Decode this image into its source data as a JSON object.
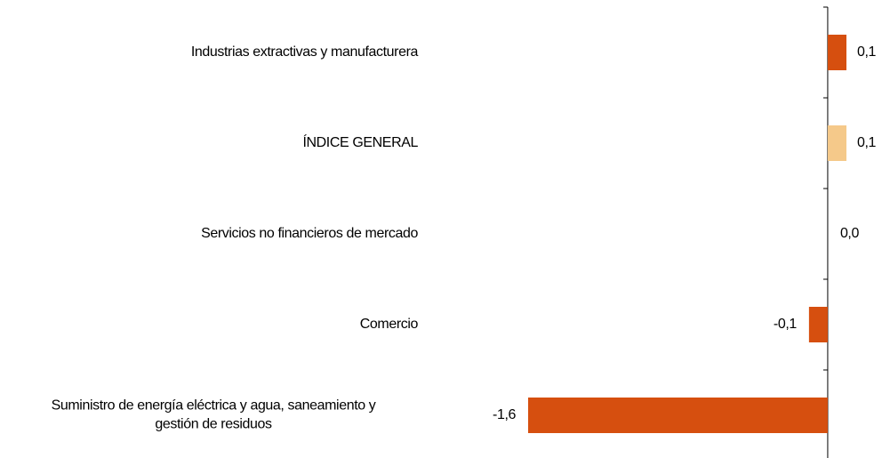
{
  "chart_data": {
    "type": "barh",
    "categories": [
      [
        "Industrias extractivas y manufacturera"
      ],
      [
        "ÍNDICE GENERAL"
      ],
      [
        "Servicios no financieros de mercado"
      ],
      [
        "Comercio"
      ],
      [
        "Suministro de energía eléctrica y agua, saneamiento y",
        "gestión de residuos"
      ]
    ],
    "values": [
      0.1,
      0.1,
      0.0,
      -0.1,
      -1.6
    ],
    "value_labels": [
      "0,1",
      "0,1",
      "0,0",
      "-0,1",
      "-1,6"
    ],
    "colors": [
      "#d64f0f",
      "#f5c98a",
      "#d64f0f",
      "#d64f0f",
      "#d64f0f"
    ],
    "xlim": [
      -1.6,
      0.1
    ]
  }
}
